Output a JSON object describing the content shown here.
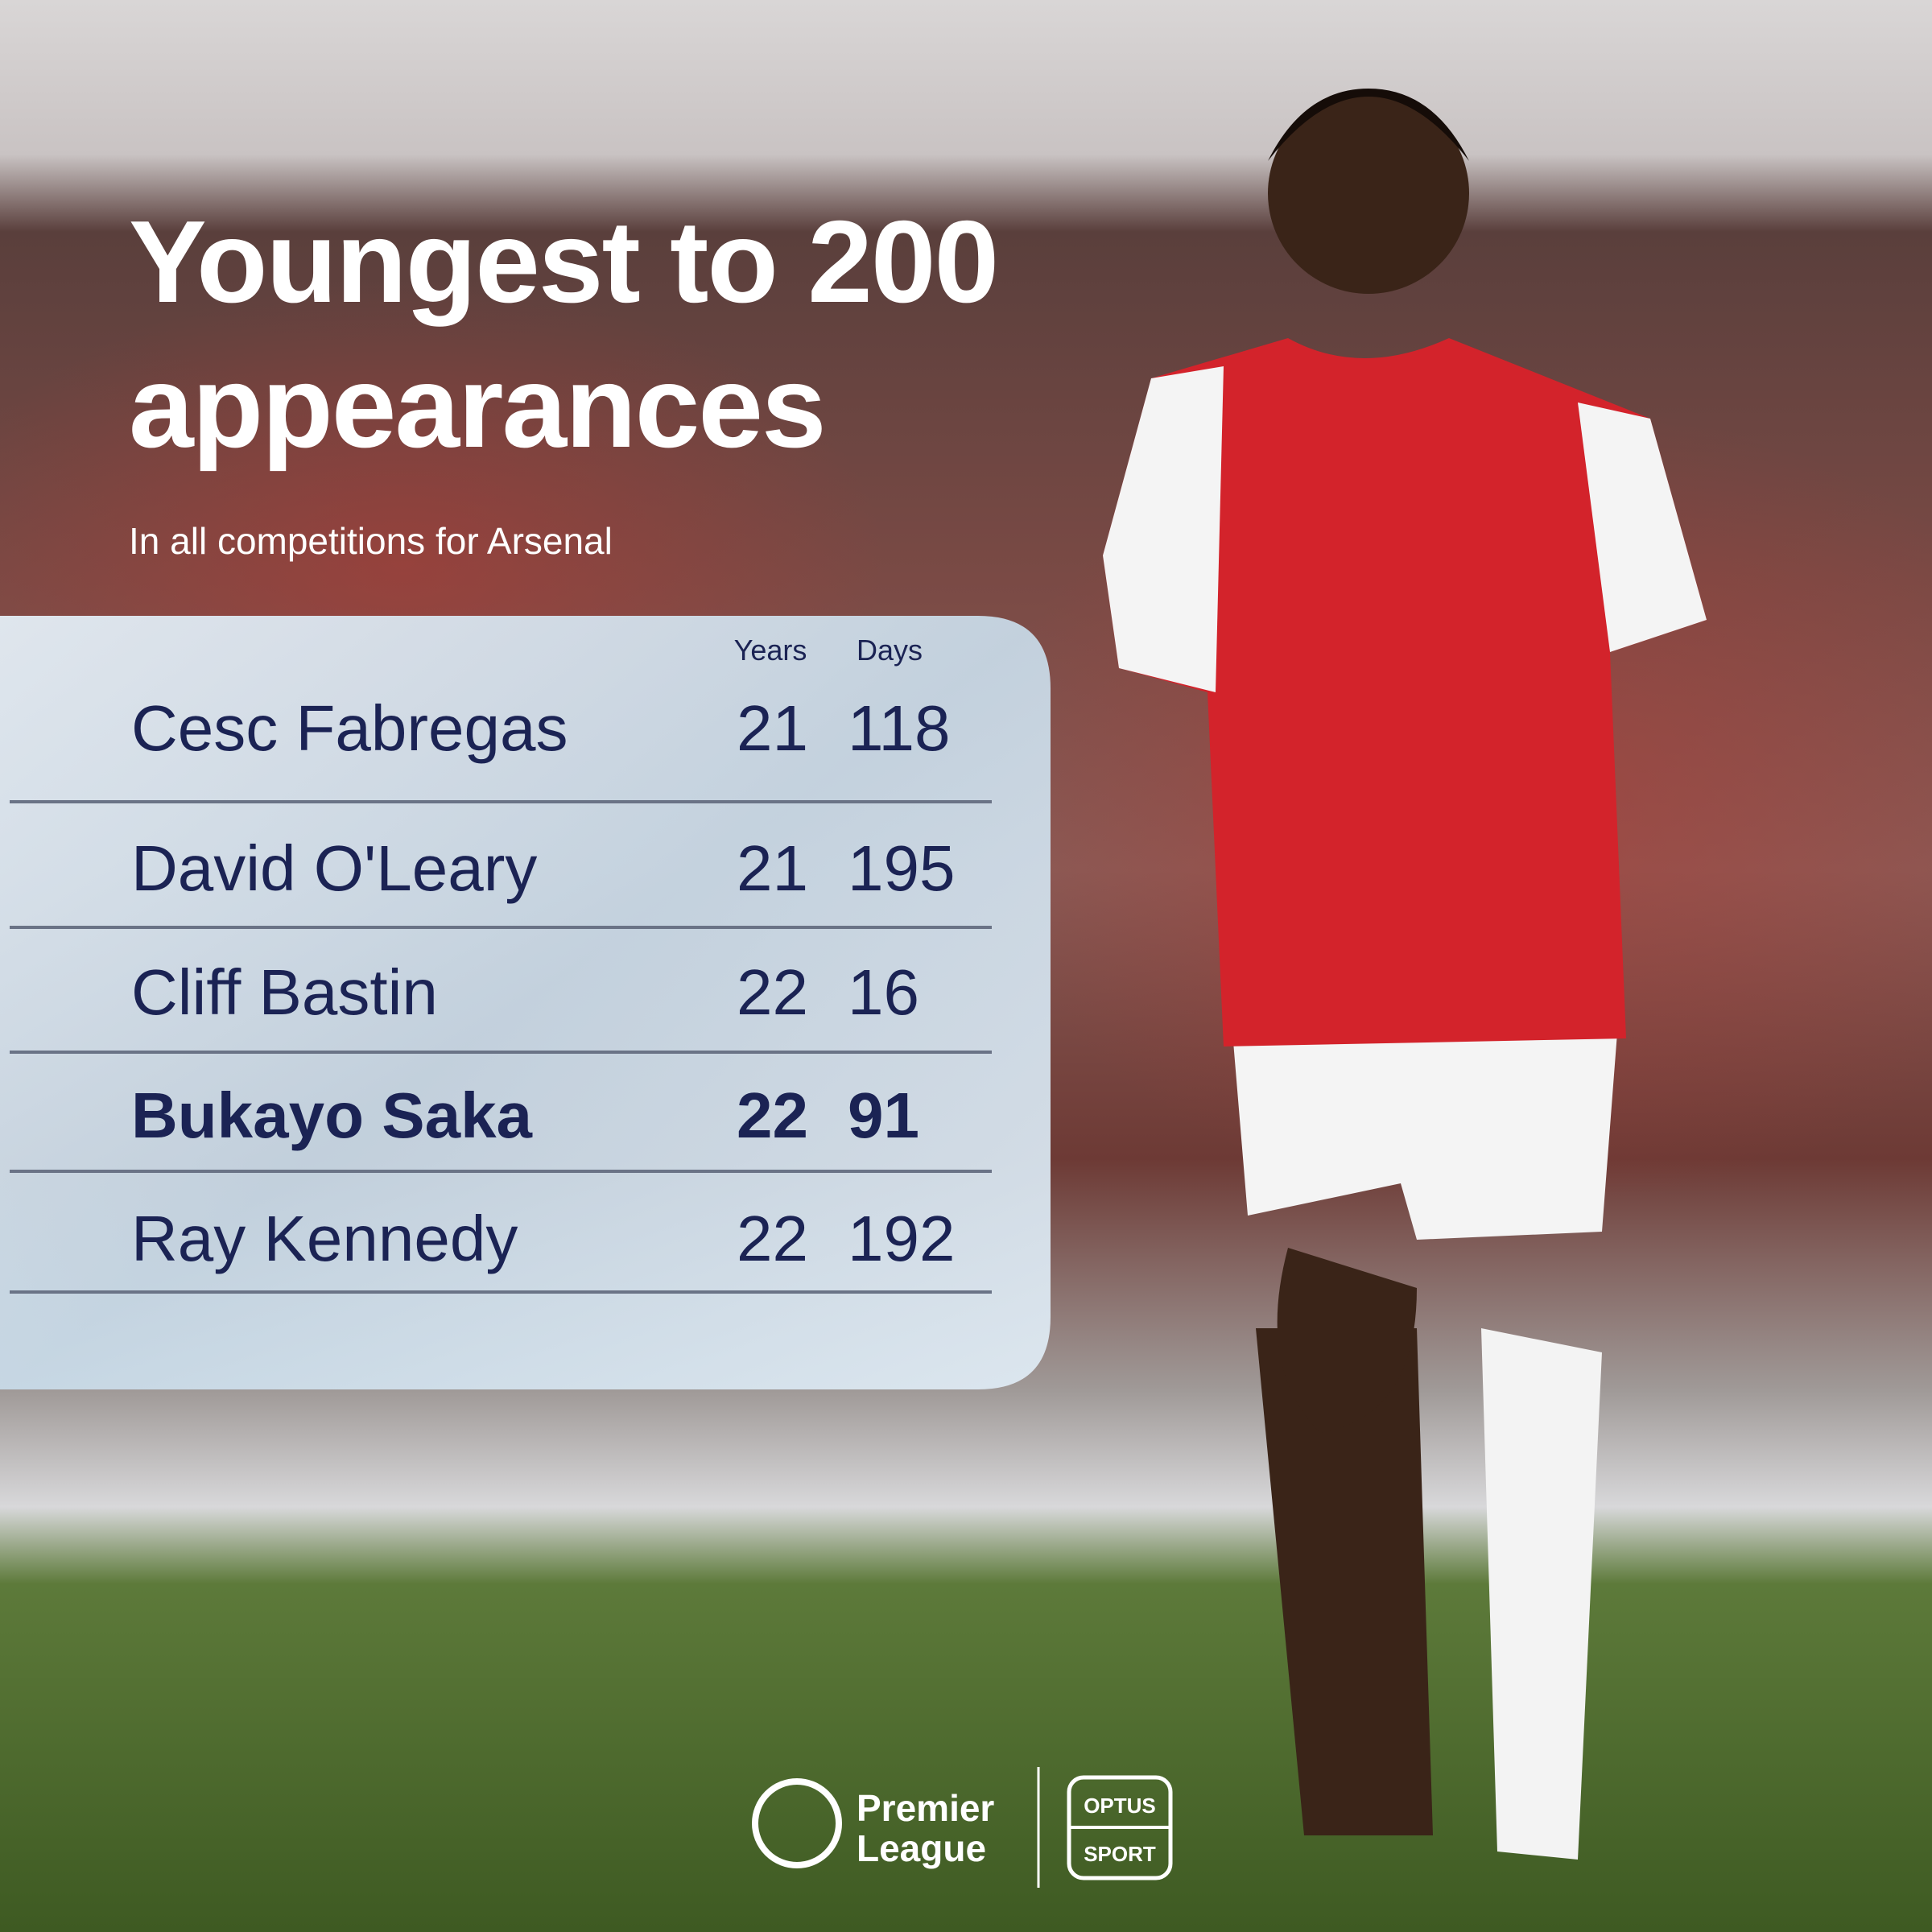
{
  "header": {
    "title_lines": [
      "Youngest to 200",
      "appearances"
    ],
    "subtitle": "In all competitions for Arsenal"
  },
  "table": {
    "columns": [
      "Years",
      "Days"
    ],
    "rows": [
      {
        "name": "Cesc Fabregas",
        "years": 21,
        "days": 118
      },
      {
        "name": "David O'Leary",
        "years": 21,
        "days": 195
      },
      {
        "name": "Cliff Bastin",
        "years": 22,
        "days": 16
      },
      {
        "name": "Bukayo Saka",
        "years": 22,
        "days": 91,
        "bold": true
      },
      {
        "name": "Ray Kennedy",
        "years": 22,
        "days": 192
      }
    ]
  },
  "footer": {
    "league_lines": [
      "Premier",
      "League"
    ],
    "partner_lines": [
      "OPTUS",
      "SPORT"
    ]
  }
}
